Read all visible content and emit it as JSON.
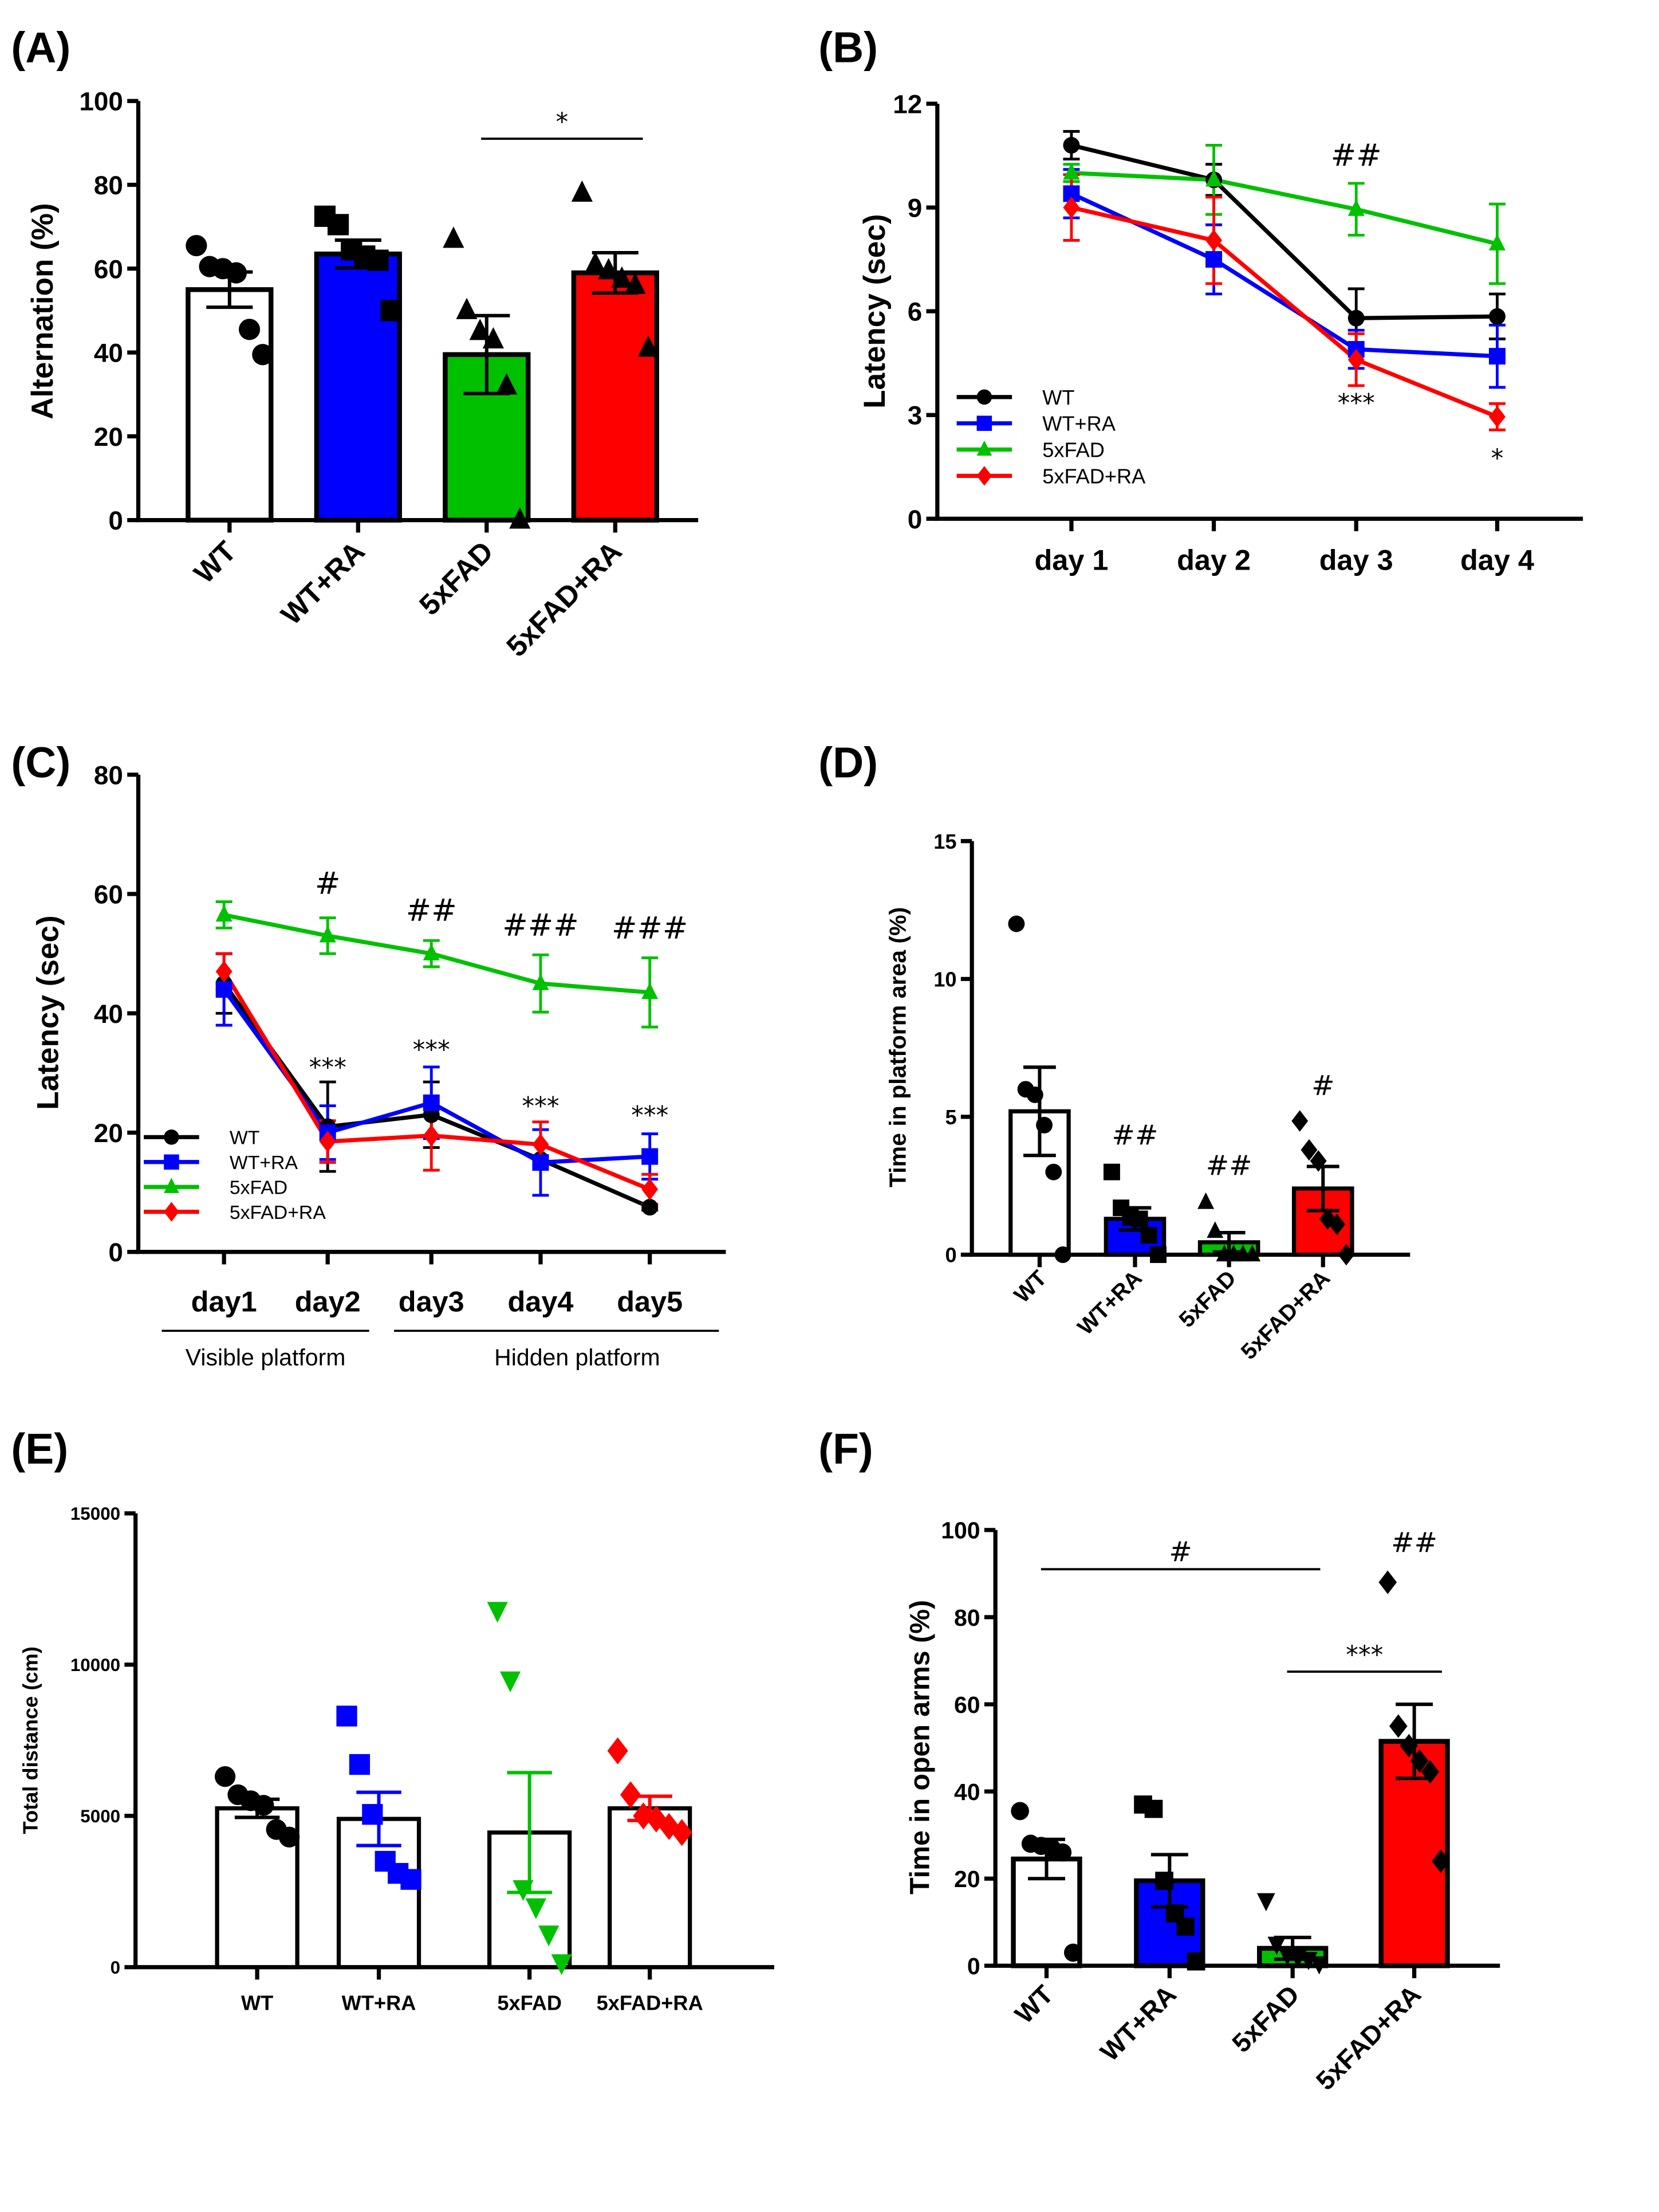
{
  "groups": [
    "WT",
    "WT+RA",
    "5xFAD",
    "5xFAD+RA"
  ],
  "colors": {
    "WT": "#ffffff",
    "WT+RA": "#0000ff",
    "5xFAD": "#00c000",
    "5xFAD+RA": "#ff0000",
    "line_WT": "#000000",
    "axis": "#000000"
  },
  "chart_data": [
    {
      "panel": "(A)",
      "type": "bar",
      "ylabel": "Alternation (%)",
      "xlabel": "",
      "ylim": [
        0,
        100
      ],
      "yticks": [
        0,
        20,
        40,
        60,
        80,
        100
      ],
      "categories": [
        "WT",
        "WT+RA",
        "5xFAD",
        "5xFAD+RA"
      ],
      "values": [
        55,
        63.5,
        39.5,
        59
      ],
      "sem": [
        4.2,
        3.3,
        9.3,
        4.8
      ],
      "points": [
        [
          65.5,
          60.5,
          60,
          59,
          45.5,
          39.5
        ],
        [
          72.5,
          70.5,
          64.5,
          63,
          62,
          50
        ],
        [
          67,
          50,
          45,
          43,
          32,
          0
        ],
        [
          78,
          61,
          59.5,
          57.5,
          56,
          41
        ]
      ],
      "markers": [
        "circle",
        "square",
        "triangle",
        "triangle"
      ],
      "annotations": [
        {
          "text": "*",
          "from": "5xFAD",
          "to": "5xFAD+RA",
          "y": 91
        }
      ]
    },
    {
      "panel": "(B)",
      "type": "line",
      "ylabel": "Latency (sec)",
      "xlabel": "",
      "ylim": [
        0,
        12
      ],
      "yticks": [
        0,
        3,
        6,
        9,
        12
      ],
      "x": [
        "day 1",
        "day 2",
        "day 3",
        "day 4"
      ],
      "legend": "bottom-left",
      "series": [
        {
          "name": "WT",
          "color": "#000000",
          "marker": "circle",
          "values": [
            10.8,
            9.8,
            5.8,
            5.85
          ],
          "sem": [
            0.4,
            0.45,
            0.85,
            0.65
          ]
        },
        {
          "name": "WT+RA",
          "color": "#0000ff",
          "marker": "square",
          "values": [
            9.4,
            7.5,
            4.9,
            4.7
          ],
          "sem": [
            0.7,
            1.0,
            0.55,
            0.9
          ]
        },
        {
          "name": "5xFAD",
          "color": "#00c000",
          "marker": "triangle",
          "values": [
            10.0,
            9.8,
            8.95,
            7.95
          ],
          "sem": [
            0.25,
            1.0,
            0.75,
            1.15
          ]
        },
        {
          "name": "5xFAD+RA",
          "color": "#ff0000",
          "marker": "diamond",
          "values": [
            9.0,
            8.05,
            4.6,
            2.95
          ],
          "sem": [
            0.95,
            1.25,
            0.75,
            0.38
          ]
        }
      ],
      "annotations": [
        {
          "text": "##",
          "x": "day 3",
          "y": 10.2
        },
        {
          "text": "***",
          "x": "day 3",
          "y": 3.1
        },
        {
          "text": "*",
          "x": "day 4",
          "y": 1.5
        }
      ]
    },
    {
      "panel": "(C)",
      "type": "line",
      "ylabel": "Latency (sec)",
      "xlabel": "",
      "ylim": [
        0,
        80
      ],
      "yticks": [
        0,
        20,
        40,
        60,
        80
      ],
      "x": [
        "day1",
        "day2",
        "day3",
        "day4",
        "day5"
      ],
      "phases": [
        {
          "label": "Visible platform",
          "from": "day1",
          "to": "day2"
        },
        {
          "label": "Hidden platform",
          "from": "day3",
          "to": "day5"
        }
      ],
      "legend": "bottom-left",
      "series": [
        {
          "name": "WT",
          "color": "#000000",
          "marker": "circle",
          "values": [
            45,
            21,
            23,
            15.5,
            7.5
          ],
          "sem": [
            5,
            7.5,
            5.5,
            0.5,
            0.5
          ]
        },
        {
          "name": "WT+RA",
          "color": "#0000ff",
          "marker": "square",
          "values": [
            44,
            20,
            25,
            15,
            16
          ],
          "sem": [
            6,
            4.5,
            6,
            5.5,
            3.8
          ]
        },
        {
          "name": "5xFAD",
          "color": "#00c000",
          "marker": "triangle",
          "values": [
            56.5,
            53,
            50,
            45,
            43.5
          ],
          "sem": [
            2.2,
            3,
            2.2,
            4.8,
            5.8
          ]
        },
        {
          "name": "5xFAD+RA",
          "color": "#ff0000",
          "marker": "diamond",
          "values": [
            47,
            18.5,
            19.5,
            18,
            10.5
          ],
          "sem": [
            3,
            3.5,
            5.8,
            3.8,
            2.5
          ]
        }
      ],
      "annotations": [
        {
          "text": "#",
          "x": "day2",
          "y": 60
        },
        {
          "text": "##",
          "x": "day3",
          "y": 55.5
        },
        {
          "text": "###",
          "x": "day4",
          "y": 53
        },
        {
          "text": "###",
          "x": "day5",
          "y": 52.5
        },
        {
          "text": "***",
          "x": "day2",
          "y": 29.5
        },
        {
          "text": "***",
          "x": "day3",
          "y": 32.5
        },
        {
          "text": "***",
          "x": "day4",
          "y": 23
        },
        {
          "text": "***",
          "x": "day5",
          "y": 21.5
        }
      ]
    },
    {
      "panel": "(D)",
      "type": "bar",
      "ylabel": "Time in platform area (%)",
      "xlabel": "",
      "ylim": [
        0,
        15
      ],
      "yticks": [
        0,
        5,
        10,
        15
      ],
      "categories": [
        "WT",
        "WT+RA",
        "5xFAD",
        "5xFAD+RA"
      ],
      "values": [
        5.2,
        1.3,
        0.45,
        2.4
      ],
      "sem": [
        1.6,
        0.4,
        0.35,
        0.8
      ],
      "points": [
        [
          12,
          6.0,
          5.8,
          4.7,
          3.0,
          0
        ],
        [
          3.0,
          1.7,
          1.35,
          1.3,
          0.7,
          0
        ],
        [
          1.9,
          0.85,
          0,
          0,
          0,
          0
        ],
        [
          4.85,
          3.8,
          3.4,
          1.3,
          1.1,
          0
        ]
      ],
      "markers": [
        "circle",
        "square",
        "triangle",
        "diamond"
      ],
      "annotations": [
        {
          "text": "##",
          "x": "WT+RA",
          "y": 4.0
        },
        {
          "text": "##",
          "x": "5xFAD",
          "y": 2.9
        },
        {
          "text": "#",
          "x": "5xFAD+RA",
          "y": 5.8
        }
      ]
    },
    {
      "panel": "(E)",
      "type": "bar",
      "ylabel": "Total distance (cm)",
      "xlabel": "",
      "ylim": [
        0,
        15000
      ],
      "yticks": [
        0,
        5000,
        10000,
        15000
      ],
      "categories": [
        "WT",
        "WT+RA",
        "5xFAD",
        "5xFAD+RA"
      ],
      "values": [
        5250,
        4900,
        4450,
        5250
      ],
      "sem": [
        300,
        880,
        1980,
        400
      ],
      "points": [
        [
          6300,
          5700,
          5500,
          5350,
          4550,
          4300
        ],
        [
          8300,
          6700,
          5050,
          3500,
          3100,
          2900
        ],
        [
          11800,
          9500,
          2600,
          2000,
          1100,
          150
        ],
        [
          7150,
          5700,
          5000,
          4900,
          4650,
          4450
        ]
      ],
      "markers": [
        "circle",
        "square",
        "triangle-down",
        "diamond"
      ]
    },
    {
      "panel": "(F)",
      "type": "bar",
      "ylabel": "Time in open arms (%)",
      "xlabel": "",
      "ylim": [
        0,
        100
      ],
      "yticks": [
        0,
        20,
        40,
        60,
        80,
        100
      ],
      "categories": [
        "WT",
        "WT+RA",
        "5xFAD",
        "5xFAD+RA"
      ],
      "values": [
        24.5,
        19.5,
        4,
        51.5
      ],
      "sem": [
        4.5,
        6,
        2.5,
        8.5
      ],
      "points": [
        [
          35.5,
          28,
          27.5,
          27,
          26,
          3
        ],
        [
          37,
          36,
          19.5,
          12,
          9,
          1
        ],
        [
          15,
          5,
          2.5,
          2,
          1.5,
          0.5
        ],
        [
          88,
          55,
          50.5,
          47,
          44.5,
          24
        ]
      ],
      "markers": [
        "circle",
        "square",
        "triangle-down",
        "diamond"
      ],
      "annotations": [
        {
          "text": "#",
          "from": "WT",
          "to": "5xFAD",
          "y": 91
        },
        {
          "text": "***",
          "from": "5xFAD",
          "to": "5xFAD+RA",
          "y": 67.5
        },
        {
          "text": "##",
          "x": "5xFAD+RA",
          "y": 95
        }
      ]
    }
  ]
}
